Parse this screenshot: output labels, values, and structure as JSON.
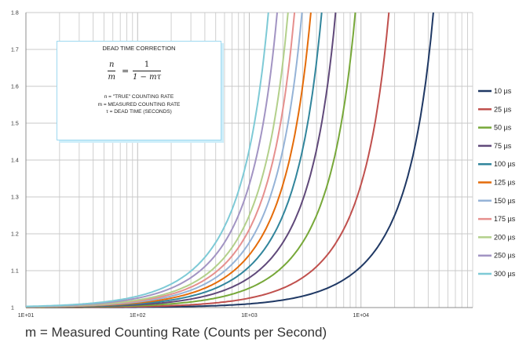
{
  "chart_data": {
    "type": "line",
    "title": "",
    "xlabel": "m = Measured Counting Rate (Counts per Second)",
    "ylabel": "",
    "x_scale": "log",
    "xlim": [
      10,
      100000
    ],
    "ylim": [
      1,
      1.8
    ],
    "x_ticks": [
      "1E+01",
      "1E+02",
      "1E+03",
      "1E+04"
    ],
    "y_ticks": [
      "1",
      "1.1",
      "1.2",
      "1.3",
      "1.4",
      "1.5",
      "1.6",
      "1.7",
      "1.8"
    ],
    "grid": true,
    "legend_position": "right",
    "series": [
      {
        "name": "10 µs",
        "dead_time_s": 1e-05,
        "color": "#1f3864",
        "x": [
          10,
          10000,
          20000,
          30000,
          40000,
          44000
        ],
        "y": [
          1.0001,
          1.111,
          1.25,
          1.429,
          1.667,
          1.786
        ]
      },
      {
        "name": "25 µs",
        "dead_time_s": 2.5e-05,
        "color": "#c0504d",
        "x": [
          10,
          4000,
          8000,
          12000,
          16000,
          17600
        ],
        "y": [
          1.00025,
          1.111,
          1.25,
          1.429,
          1.667,
          1.786
        ]
      },
      {
        "name": "50 µs",
        "dead_time_s": 5e-05,
        "color": "#77a839",
        "x": [
          10,
          2000,
          4000,
          6000,
          8000,
          8800
        ],
        "y": [
          1.0005,
          1.111,
          1.25,
          1.429,
          1.667,
          1.786
        ]
      },
      {
        "name": "75 µs",
        "dead_time_s": 7.5e-05,
        "color": "#60497a",
        "x": [
          10,
          1333,
          2667,
          4000,
          5333,
          5867
        ],
        "y": [
          1.00075,
          1.111,
          1.25,
          1.429,
          1.667,
          1.786
        ]
      },
      {
        "name": "100 µs",
        "dead_time_s": 0.0001,
        "color": "#31859c",
        "x": [
          10,
          1000,
          2000,
          3000,
          4000,
          4400
        ],
        "y": [
          1.001,
          1.111,
          1.25,
          1.429,
          1.667,
          1.786
        ]
      },
      {
        "name": "125 µs",
        "dead_time_s": 0.000125,
        "color": "#e46c0a",
        "x": [
          10,
          800,
          1600,
          2400,
          3200,
          3520
        ],
        "y": [
          1.00125,
          1.111,
          1.25,
          1.429,
          1.667,
          1.786
        ]
      },
      {
        "name": "150 µs",
        "dead_time_s": 0.00015,
        "color": "#95b3d7",
        "x": [
          10,
          667,
          1333,
          2000,
          2667,
          2933
        ],
        "y": [
          1.0015,
          1.111,
          1.25,
          1.429,
          1.667,
          1.786
        ]
      },
      {
        "name": "175 µs",
        "dead_time_s": 0.000175,
        "color": "#e6908e",
        "x": [
          10,
          571,
          1143,
          1714,
          2286,
          2514
        ],
        "y": [
          1.00175,
          1.111,
          1.25,
          1.429,
          1.667,
          1.786
        ]
      },
      {
        "name": "200 µs",
        "dead_time_s": 0.0002,
        "color": "#b3d08b",
        "x": [
          10,
          500,
          1000,
          1500,
          2000,
          2200
        ],
        "y": [
          1.002,
          1.111,
          1.25,
          1.429,
          1.667,
          1.786
        ]
      },
      {
        "name": "250 µs",
        "dead_time_s": 0.00025,
        "color": "#a294c3",
        "x": [
          10,
          400,
          800,
          1200,
          1600,
          1760
        ],
        "y": [
          1.0025,
          1.111,
          1.25,
          1.429,
          1.667,
          1.786
        ]
      },
      {
        "name": "300 µs",
        "dead_time_s": 0.0003,
        "color": "#7ecad6",
        "x": [
          10,
          333,
          667,
          1000,
          1333,
          1467
        ],
        "y": [
          1.003,
          1.111,
          1.25,
          1.429,
          1.667,
          1.786
        ]
      }
    ],
    "annotation": {
      "title": "DEAD TIME CORRECTION",
      "formula_lhs_num": "n",
      "formula_lhs_den": "m",
      "formula_equals": "=",
      "formula_rhs_num": "1",
      "formula_rhs_den": "1 − mτ",
      "line1": "n  = \"TRUE\" COUNTING RATE",
      "line2": "m = MEASURED COUNTING RATE",
      "line3": "τ = DEAD TIME (SECONDS)"
    }
  }
}
